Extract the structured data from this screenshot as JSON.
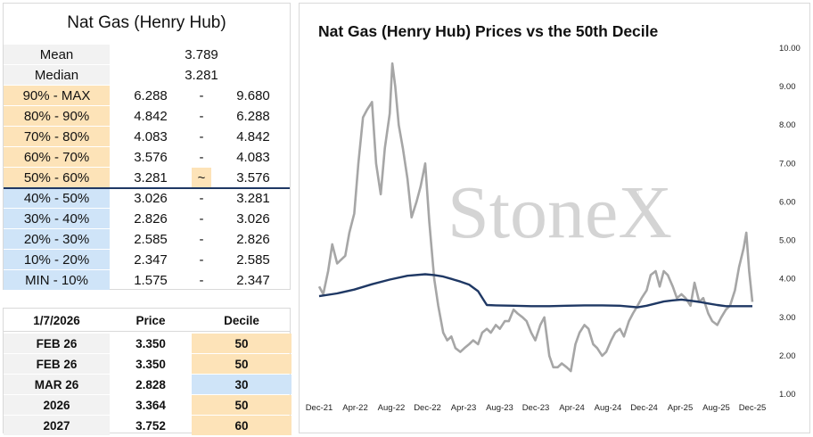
{
  "stats": {
    "title": "Nat Gas (Henry Hub)",
    "mean_label": "Mean",
    "mean_value": "3.789",
    "median_label": "Median",
    "median_value": "3.281",
    "deciles": [
      {
        "label": "90% - MAX",
        "low": "6.288",
        "sep": "-",
        "high": "9.680",
        "color": "#fde3b8"
      },
      {
        "label": "80% - 90%",
        "low": "4.842",
        "sep": "-",
        "high": "6.288",
        "color": "#fde3b8"
      },
      {
        "label": "70% - 80%",
        "low": "4.083",
        "sep": "-",
        "high": "4.842",
        "color": "#fde3b8"
      },
      {
        "label": "60% - 70%",
        "low": "3.576",
        "sep": "-",
        "high": "4.083",
        "color": "#fde3b8"
      },
      {
        "label": "50% - 60%",
        "low": "3.281",
        "sep": "~",
        "high": "3.576",
        "color": "#fde3b8"
      },
      {
        "label": "40% - 50%",
        "low": "3.026",
        "sep": "-",
        "high": "3.281",
        "color": "#cfe4f8"
      },
      {
        "label": "30% - 40%",
        "low": "2.826",
        "sep": "-",
        "high": "3.026",
        "color": "#cfe4f8"
      },
      {
        "label": "20% - 30%",
        "low": "2.585",
        "sep": "-",
        "high": "2.826",
        "color": "#cfe4f8"
      },
      {
        "label": "10% - 20%",
        "low": "2.347",
        "sep": "-",
        "high": "2.585",
        "color": "#cfe4f8"
      },
      {
        "label": "MIN - 10%",
        "low": "1.575",
        "sep": "-",
        "high": "2.347",
        "color": "#cfe4f8"
      }
    ]
  },
  "contracts": {
    "headers": [
      "1/7/2026",
      "Price",
      "Decile"
    ],
    "rows": [
      {
        "contract": "FEB 26",
        "price": "3.350",
        "decile": "50",
        "color": "#fde3b8"
      },
      {
        "contract": "FEB 26",
        "price": "3.350",
        "decile": "50",
        "color": "#fde3b8"
      },
      {
        "contract": "MAR 26",
        "price": "2.828",
        "decile": "30",
        "color": "#cfe4f8"
      },
      {
        "contract": "2026",
        "price": "3.364",
        "decile": "50",
        "color": "#fde3b8"
      },
      {
        "contract": "2027",
        "price": "3.752",
        "decile": "60",
        "color": "#fde3b8"
      }
    ]
  },
  "watermark": "StoneX",
  "watermark_mark": "®",
  "chart_data": {
    "type": "line",
    "title": "Nat Gas (Henry Hub) Prices vs the 50th Decile",
    "x_tick_labels": [
      "Dec-21",
      "Apr-22",
      "Aug-22",
      "Dec-22",
      "Apr-23",
      "Aug-23",
      "Dec-23",
      "Apr-24",
      "Aug-24",
      "Dec-24",
      "Apr-25",
      "Aug-25",
      "Dec-25"
    ],
    "y_tick_labels": [
      "1.00",
      "2.00",
      "3.00",
      "4.00",
      "5.00",
      "6.00",
      "7.00",
      "8.00",
      "9.00",
      "10.00"
    ],
    "ylim": [
      1,
      10
    ],
    "y_axis_position": "right",
    "legend": "none",
    "grid": false,
    "x_start": "2021-12-01",
    "x_end": "2025-12-31",
    "series": [
      {
        "color": "#a6a6a6",
        "x": [
          "2021-12-01",
          "2021-12-15",
          "2022-01-01",
          "2022-01-15",
          "2022-02-01",
          "2022-02-15",
          "2022-03-01",
          "2022-03-15",
          "2022-04-01",
          "2022-04-15",
          "2022-05-01",
          "2022-05-15",
          "2022-06-01",
          "2022-06-15",
          "2022-07-01",
          "2022-07-15",
          "2022-08-01",
          "2022-08-10",
          "2022-08-20",
          "2022-09-01",
          "2022-09-15",
          "2022-10-01",
          "2022-10-15",
          "2022-11-01",
          "2022-11-15",
          "2022-12-01",
          "2022-12-15",
          "2023-01-01",
          "2023-01-15",
          "2023-02-01",
          "2023-02-15",
          "2023-03-01",
          "2023-03-15",
          "2023-04-01",
          "2023-04-15",
          "2023-05-01",
          "2023-05-15",
          "2023-06-01",
          "2023-06-15",
          "2023-07-01",
          "2023-07-15",
          "2023-08-01",
          "2023-08-15",
          "2023-09-01",
          "2023-09-15",
          "2023-10-01",
          "2023-10-15",
          "2023-11-01",
          "2023-11-15",
          "2023-12-01",
          "2023-12-15",
          "2024-01-01",
          "2024-01-15",
          "2024-02-01",
          "2024-02-15",
          "2024-03-01",
          "2024-03-15",
          "2024-04-01",
          "2024-04-15",
          "2024-05-01",
          "2024-05-15",
          "2024-06-01",
          "2024-06-15",
          "2024-07-01",
          "2024-07-15",
          "2024-08-01",
          "2024-08-15",
          "2024-09-01",
          "2024-09-15",
          "2024-10-01",
          "2024-10-15",
          "2024-11-01",
          "2024-11-15",
          "2024-12-01",
          "2024-12-15",
          "2025-01-01",
          "2025-01-15",
          "2025-02-01",
          "2025-02-15",
          "2025-03-01",
          "2025-03-15",
          "2025-04-01",
          "2025-04-15",
          "2025-05-01",
          "2025-05-15",
          "2025-06-01",
          "2025-06-15",
          "2025-07-01",
          "2025-07-15",
          "2025-08-01",
          "2025-08-15",
          "2025-09-01",
          "2025-09-15",
          "2025-10-01",
          "2025-10-15",
          "2025-11-01",
          "2025-11-15",
          "2025-12-01",
          "2025-12-10",
          "2025-12-20",
          "2025-12-31"
        ],
        "y": [
          3.8,
          3.6,
          4.2,
          4.9,
          4.4,
          4.5,
          4.6,
          5.2,
          5.7,
          7.0,
          8.2,
          8.4,
          8.6,
          7.0,
          6.2,
          7.4,
          8.3,
          9.6,
          9.0,
          8.0,
          7.4,
          6.6,
          5.6,
          6.0,
          6.4,
          7.0,
          5.5,
          4.0,
          3.3,
          2.6,
          2.4,
          2.5,
          2.2,
          2.1,
          2.2,
          2.3,
          2.4,
          2.3,
          2.6,
          2.7,
          2.6,
          2.8,
          2.7,
          2.9,
          2.9,
          3.2,
          3.1,
          3.0,
          2.9,
          2.6,
          2.4,
          2.8,
          3.0,
          2.0,
          1.7,
          1.7,
          1.8,
          1.7,
          1.6,
          2.3,
          2.6,
          2.8,
          2.7,
          2.3,
          2.2,
          2.0,
          2.1,
          2.4,
          2.6,
          2.7,
          2.5,
          2.9,
          3.1,
          3.3,
          3.5,
          3.7,
          4.1,
          4.2,
          3.8,
          4.2,
          4.1,
          3.8,
          3.5,
          3.6,
          3.5,
          3.3,
          3.9,
          3.4,
          3.5,
          3.1,
          2.9,
          2.8,
          3.0,
          3.2,
          3.3,
          3.7,
          4.3,
          4.8,
          5.2,
          4.2,
          3.4
        ]
      },
      {
        "color": "#1f3864",
        "x": [
          "2021-12-01",
          "2022-02-01",
          "2022-04-01",
          "2022-06-01",
          "2022-08-01",
          "2022-10-01",
          "2022-12-01",
          "2023-01-01",
          "2023-02-01",
          "2023-03-01",
          "2023-04-01",
          "2023-05-01",
          "2023-06-01",
          "2023-06-20",
          "2023-07-01",
          "2023-08-01",
          "2023-10-01",
          "2023-12-01",
          "2024-02-01",
          "2024-04-01",
          "2024-06-01",
          "2024-08-01",
          "2024-10-01",
          "2024-12-01",
          "2025-01-01",
          "2025-02-01",
          "2025-03-01",
          "2025-04-01",
          "2025-05-01",
          "2025-06-01",
          "2025-07-01",
          "2025-08-01",
          "2025-09-01",
          "2025-10-01",
          "2025-11-01",
          "2025-12-31"
        ],
        "y": [
          3.55,
          3.62,
          3.72,
          3.86,
          3.98,
          4.08,
          4.12,
          4.1,
          4.06,
          4.0,
          3.93,
          3.85,
          3.68,
          3.45,
          3.32,
          3.31,
          3.3,
          3.29,
          3.29,
          3.3,
          3.31,
          3.31,
          3.3,
          3.26,
          3.3,
          3.36,
          3.41,
          3.44,
          3.46,
          3.43,
          3.4,
          3.36,
          3.32,
          3.29,
          3.29,
          3.29
        ]
      }
    ]
  }
}
